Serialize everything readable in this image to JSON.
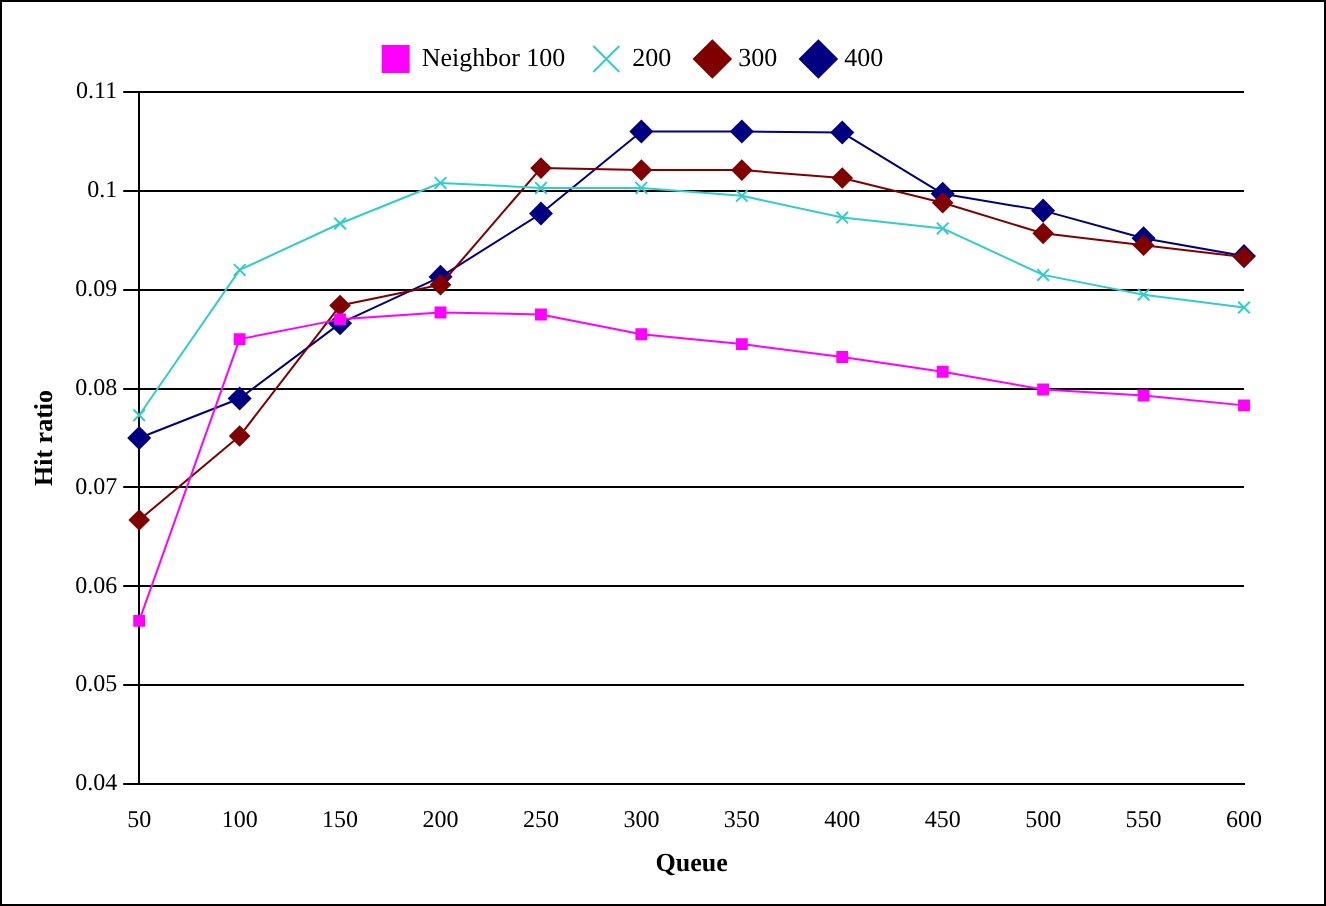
{
  "chart_data": {
    "type": "line",
    "xlabel": "Queue",
    "ylabel": "Hit ratio",
    "categories": [
      "50",
      "100",
      "150",
      "200",
      "250",
      "300",
      "350",
      "400",
      "450",
      "500",
      "550",
      "600"
    ],
    "series": [
      {
        "name": "Neighbor 100",
        "color": "#ff00ff",
        "marker": "square",
        "values": [
          0.0565,
          0.085,
          0.087,
          0.0877,
          0.0875,
          0.0855,
          0.0845,
          0.0832,
          0.0817,
          0.0799,
          0.0793,
          0.0783
        ]
      },
      {
        "name": "200",
        "color": "#33cccc",
        "marker": "cross",
        "values": [
          0.0773,
          0.092,
          0.0967,
          0.1008,
          0.1003,
          0.1003,
          0.0995,
          0.0973,
          0.0962,
          0.0915,
          0.0895,
          0.0882
        ]
      },
      {
        "name": "300",
        "color": "#800000",
        "marker": "diamond",
        "values": [
          0.0667,
          0.0752,
          0.0884,
          0.0905,
          0.1023,
          0.1021,
          0.1021,
          0.1013,
          0.0988,
          0.0957,
          0.0945,
          0.0933
        ]
      },
      {
        "name": "400",
        "color": "#000080",
        "marker": "diamond",
        "values": [
          0.075,
          0.079,
          0.0866,
          0.0913,
          0.0977,
          0.106,
          0.106,
          0.1059,
          0.0997,
          0.098,
          0.0952,
          0.0934
        ]
      }
    ],
    "ylim": [
      0.04,
      0.11
    ],
    "yticks": [
      0.04,
      0.05,
      0.06,
      0.07,
      0.08,
      0.09,
      0.1,
      0.11
    ],
    "grid": "y",
    "legend": "top",
    "line_style": "solid"
  }
}
